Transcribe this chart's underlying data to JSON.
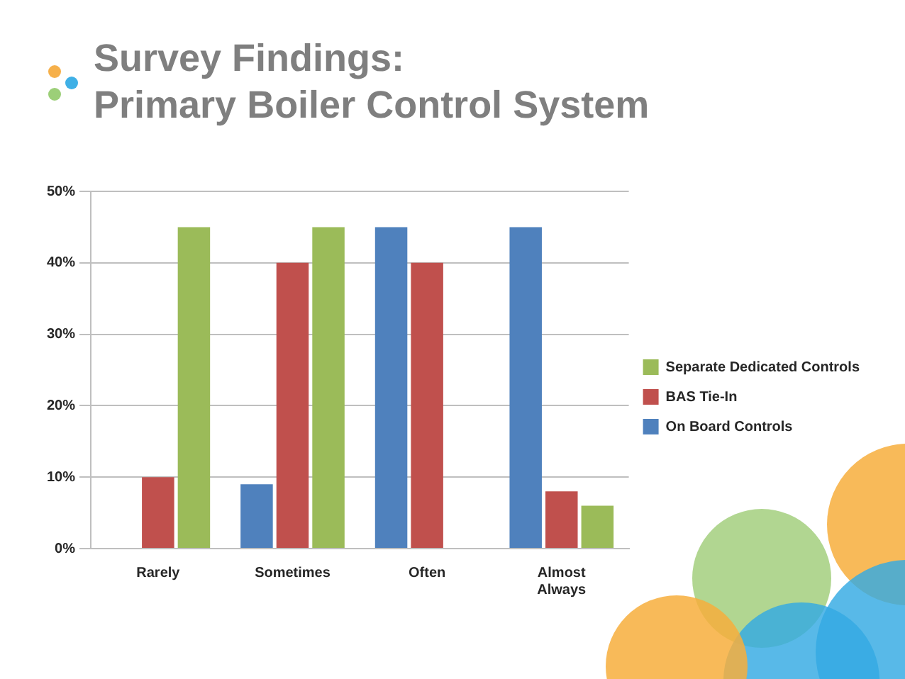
{
  "chart_data": {
    "type": "bar",
    "title": "Survey Findings:\nPrimary Boiler Control System",
    "categories": [
      "Rarely",
      "Sometimes",
      "Often",
      "Almost Always"
    ],
    "series": [
      {
        "name": "On Board Controls",
        "color": "#4f81bd",
        "values": [
          0,
          9,
          45,
          45
        ]
      },
      {
        "name": "BAS Tie-In",
        "color": "#c0504d",
        "values": [
          10,
          40,
          40,
          8
        ]
      },
      {
        "name": "Separate Dedicated Controls",
        "color": "#9bbb59",
        "values": [
          45,
          45,
          0,
          6
        ]
      }
    ],
    "ylim": [
      0,
      50
    ],
    "yticks": [
      {
        "value": 0,
        "label": "0%"
      },
      {
        "value": 10,
        "label": "10%"
      },
      {
        "value": 20,
        "label": "20%"
      },
      {
        "value": 30,
        "label": "30%"
      },
      {
        "value": 40,
        "label": "40%"
      },
      {
        "value": 50,
        "label": "50%"
      }
    ],
    "grid": "y",
    "legend": "right"
  }
}
